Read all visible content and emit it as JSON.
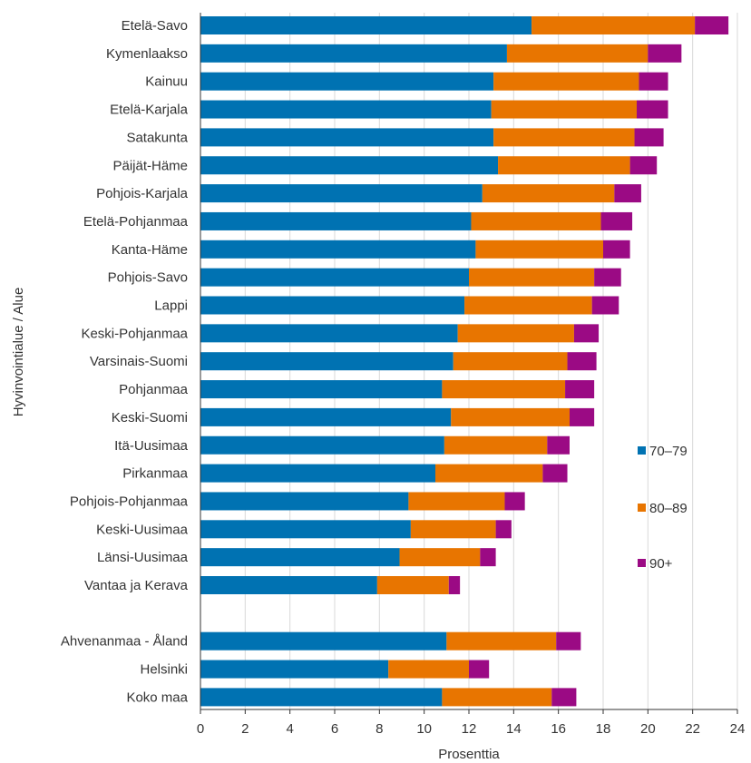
{
  "chart_data": {
    "type": "bar",
    "orientation": "horizontal",
    "stacked": true,
    "categories": [
      "Etelä-Savo",
      "Kymenlaakso",
      "Kainuu",
      "Etelä-Karjala",
      "Satakunta",
      "Päijät-Häme",
      "Pohjois-Karjala",
      "Etelä-Pohjanmaa",
      "Kanta-Häme",
      "Pohjois-Savo",
      "Lappi",
      "Keski-Pohjanmaa",
      "Varsinais-Suomi",
      "Pohjanmaa",
      "Keski-Suomi",
      "Itä-Uusimaa",
      "Pirkanmaa",
      "Pohjois-Pohjanmaa",
      "Keski-Uusimaa",
      "Länsi-Uusimaa",
      "Vantaa ja Kerava",
      "",
      "Ahvenanmaa - Åland",
      "Helsinki",
      "Koko maa"
    ],
    "series": [
      {
        "name": "70–79",
        "color": "#0072b2",
        "values": [
          14.8,
          13.7,
          13.1,
          13.0,
          13.1,
          13.3,
          12.6,
          12.1,
          12.3,
          12.0,
          11.8,
          11.5,
          11.3,
          10.8,
          11.2,
          10.9,
          10.5,
          9.3,
          9.4,
          8.9,
          7.9,
          null,
          11.0,
          8.4,
          10.8
        ]
      },
      {
        "name": "80–89",
        "color": "#e87500",
        "values": [
          7.3,
          6.3,
          6.5,
          6.5,
          6.3,
          5.9,
          5.9,
          5.8,
          5.7,
          5.6,
          5.7,
          5.2,
          5.1,
          5.5,
          5.3,
          4.6,
          4.8,
          4.3,
          3.8,
          3.6,
          3.2,
          null,
          4.9,
          3.6,
          4.9
        ]
      },
      {
        "name": "90+",
        "color": "#9b0a84",
        "values": [
          1.5,
          1.5,
          1.3,
          1.4,
          1.3,
          1.2,
          1.2,
          1.4,
          1.2,
          1.2,
          1.2,
          1.1,
          1.3,
          1.3,
          1.1,
          1.0,
          1.1,
          0.9,
          0.7,
          0.7,
          0.5,
          null,
          1.1,
          0.9,
          1.1
        ]
      }
    ],
    "xlim": [
      0,
      24
    ],
    "xticks": [
      "0",
      "2",
      "4",
      "6",
      "8",
      "10",
      "12",
      "14",
      "16",
      "18",
      "20",
      "22",
      "24"
    ],
    "xlabel": "Prosenttia",
    "ylabel": "Hyvinvointialue / Alue",
    "grid": "vertical",
    "legend_position": "right"
  }
}
